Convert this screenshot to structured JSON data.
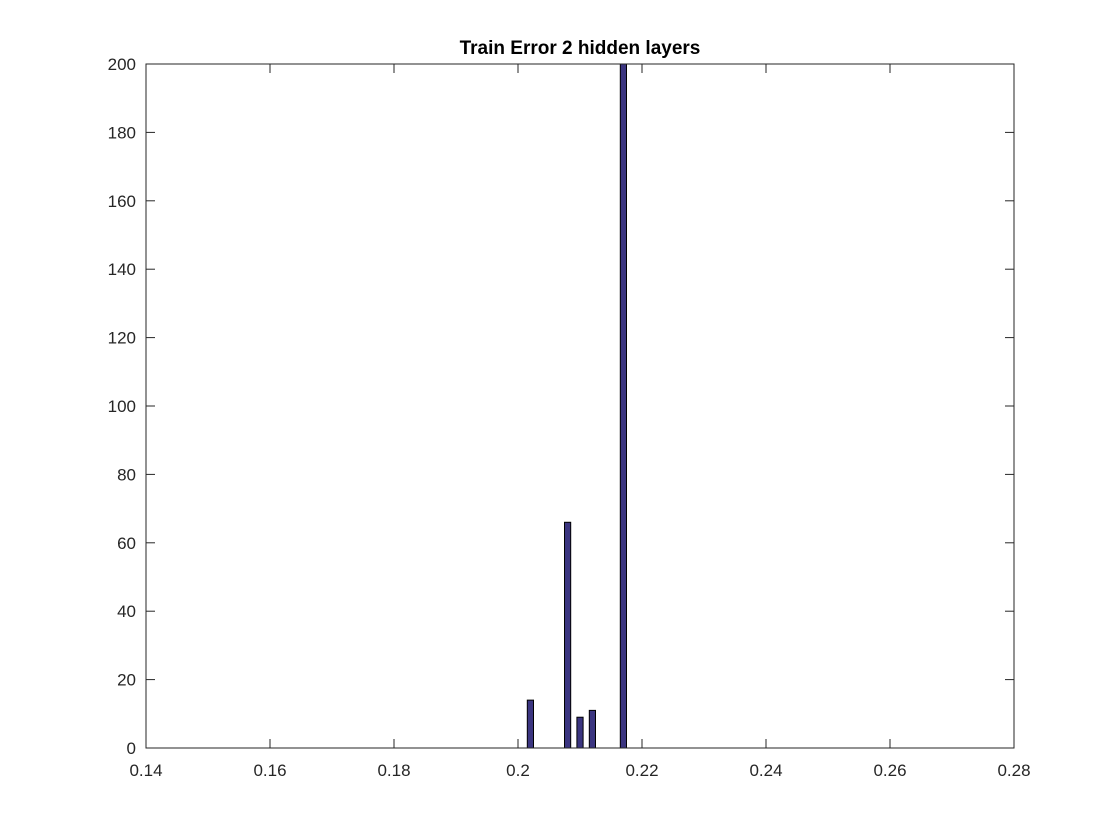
{
  "chart_data": {
    "type": "bar",
    "title": "Train Error 2 hidden layers",
    "xlabel": "",
    "ylabel": "",
    "xlim": [
      0.14,
      0.28
    ],
    "ylim": [
      0,
      200
    ],
    "xticks": [
      0.14,
      0.16,
      0.18,
      0.2,
      0.22,
      0.24,
      0.26,
      0.28
    ],
    "xtick_labels": [
      "0.14",
      "0.16",
      "0.18",
      "0.2",
      "0.22",
      "0.24",
      "0.26",
      "0.28"
    ],
    "yticks": [
      0,
      20,
      40,
      60,
      80,
      100,
      120,
      140,
      160,
      180,
      200
    ],
    "ytick_labels": [
      "0",
      "20",
      "40",
      "60",
      "80",
      "100",
      "120",
      "140",
      "160",
      "180",
      "200"
    ],
    "bar_width": 0.001,
    "x": [
      0.15,
      0.202,
      0.208,
      0.21,
      0.212,
      0.217,
      0.272
    ],
    "values": [
      0,
      14,
      66,
      9,
      11,
      200,
      0
    ],
    "bar_color": "#3b3580",
    "edge_color": "#000000",
    "grid": false
  }
}
